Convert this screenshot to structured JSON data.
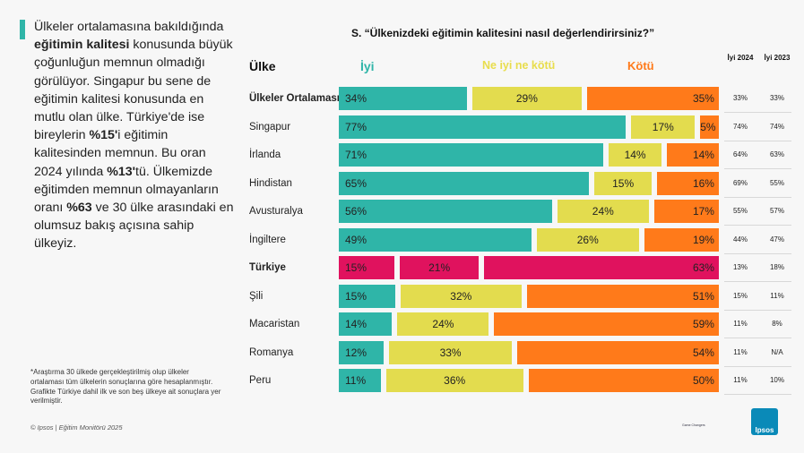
{
  "narrative": {
    "p1": "Ülkeler ortalamasına bakıldığında",
    "p2_bold": "eğitimin kalitesi",
    "p3": "konusunda büyük çoğunluğun memnun olmadığı görülüyor. Singapur bu sene de eğitimin kalitesi konusunda en mutlu olan ülke. Türkiye'de ise bireylerin",
    "p4_bold": "%15'",
    "p5": "i eğitimin kalitesinden memnun. Bu oran 2024 yılında",
    "p6_bold": "%13'",
    "p7": "tü. Ülkemizde eğitimden memnun olmayanların oranı",
    "p8_bold": "%63",
    "p9": "ve 30 ülke arasındaki en olumsuz bakış açısına sahip ülkeyiz."
  },
  "footnote": "*Araştırma 30 ülkede gerçekleştirilmiş olup ülkeler ortalaması tüm ülkelerin sonuçlarına göre hesaplanmıştır. Grafikte Türkiye dahil ilk ve son beş ülkeye ait sonuçlara yer verilmiştir.",
  "copyright": "© Ipsos | Eğitim Monitörü 2025",
  "logo": {
    "small_text": "Game Changers",
    "brand": "Ipsos"
  },
  "colors": {
    "good": "#2fb5a8",
    "neutral": "#e3dc4e",
    "bad": "#ff7a1a",
    "turkey": "#e0125e"
  },
  "chart_data": {
    "type": "bar",
    "orientation": "horizontal-stacked",
    "title": "S. “Ülkenizdeki eğitimin kalitesini nasıl değerlendirirsiniz?”",
    "category_header": "Ülke",
    "series": [
      {
        "name": "İyi",
        "values": [
          34,
          77,
          71,
          65,
          56,
          49,
          15,
          15,
          14,
          12,
          11
        ]
      },
      {
        "name": "Ne iyi ne kötü",
        "values": [
          29,
          17,
          14,
          15,
          24,
          26,
          21,
          32,
          24,
          33,
          36
        ]
      },
      {
        "name": "Kötü",
        "values": [
          35,
          5,
          14,
          16,
          17,
          19,
          63,
          51,
          59,
          54,
          50
        ]
      }
    ],
    "categories": [
      "Ülkeler Ortalaması",
      "Singapur",
      "İrlanda",
      "Hindistan",
      "Avusturalya",
      "İngiltere",
      "Türkiye",
      "Şili",
      "Macaristan",
      "Romanya",
      "Peru"
    ],
    "highlight": [
      "Ülkeler Ortalaması",
      "Türkiye"
    ],
    "year_columns": [
      {
        "header": "İyi 2024",
        "values": [
          "33%",
          "74%",
          "64%",
          "69%",
          "55%",
          "44%",
          "13%",
          "15%",
          "11%",
          "11%",
          "11%"
        ]
      },
      {
        "header": "İyi 2023",
        "values": [
          "33%",
          "74%",
          "63%",
          "55%",
          "57%",
          "47%",
          "18%",
          "11%",
          "8%",
          "N/A",
          "10%"
        ]
      }
    ]
  }
}
